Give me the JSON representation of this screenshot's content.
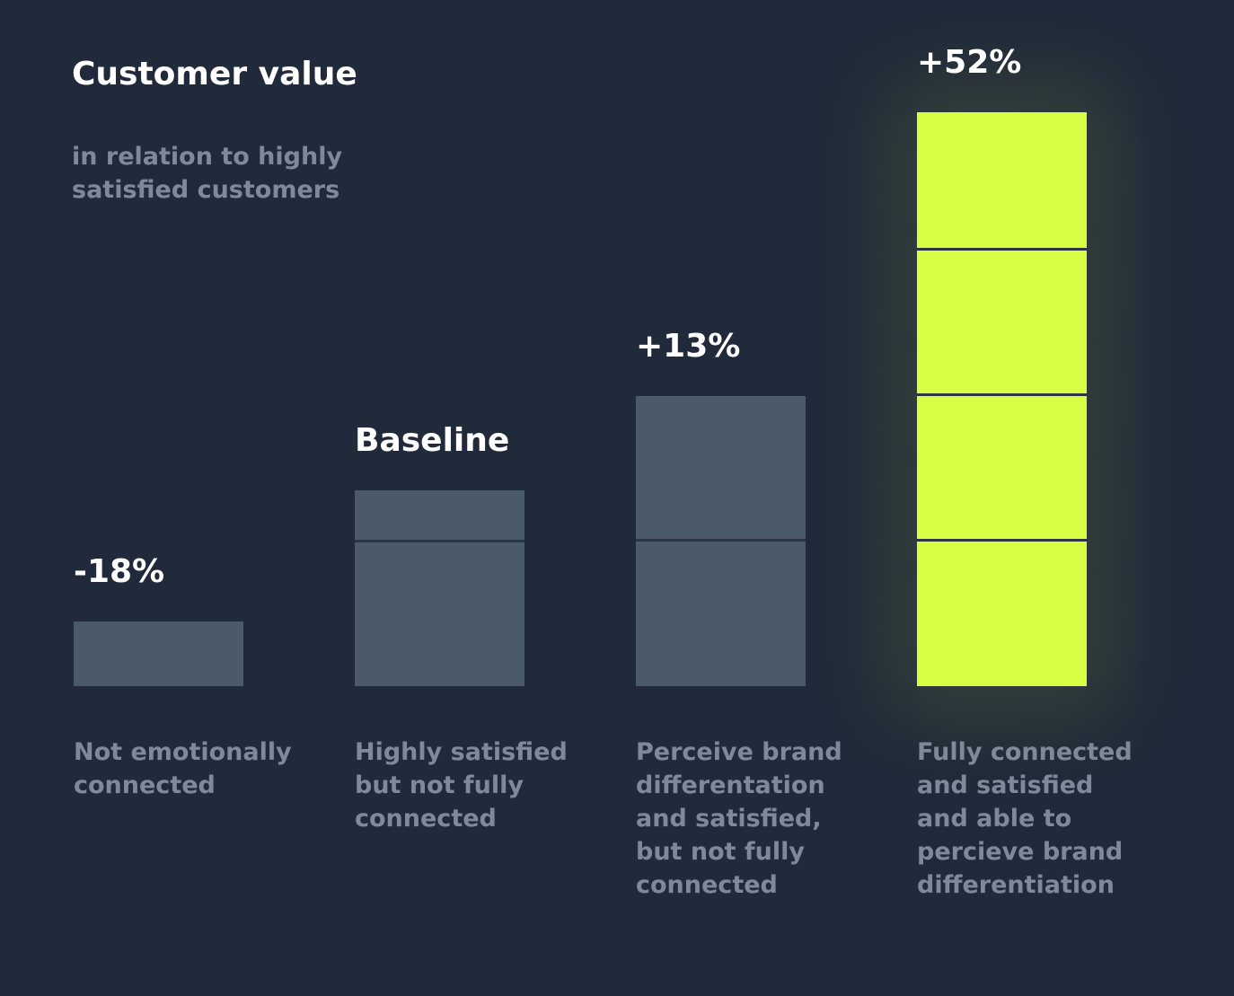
{
  "chart_data": {
    "type": "bar",
    "title": "Customer value",
    "subtitle": "in relation to highly satisfied customers",
    "categories": [
      "Not emotionally connected",
      "Highly satisfied but not fully connected",
      "Perceive brand differentation and satisfied, but not fully connected",
      "Fully connected and satisfied and able to percieve brand differentiation"
    ],
    "values": [
      -18,
      0,
      13,
      52
    ],
    "value_labels": [
      "-18%",
      "Baseline",
      "+13%",
      "+52%"
    ],
    "colors": [
      "#4a5a6b",
      "#4a5a6b",
      "#4a5a6b",
      "#d9ff45"
    ]
  }
}
